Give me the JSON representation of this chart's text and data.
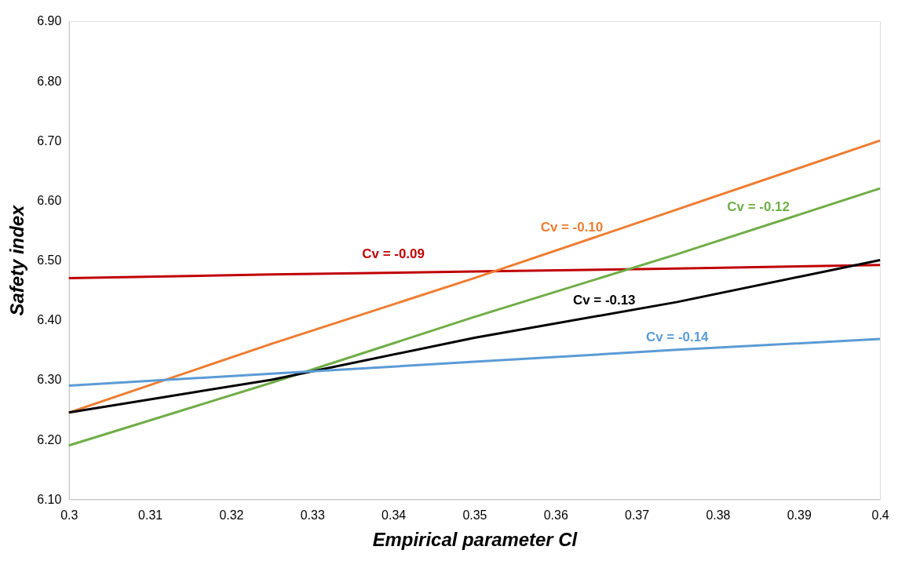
{
  "chart_data": {
    "type": "line",
    "xlabel": "Empirical parameter Cl",
    "ylabel": "Safety index",
    "x": [
      0.3,
      0.325,
      0.35,
      0.375,
      0.4
    ],
    "series": [
      {
        "color": "#c00000",
        "values": [
          6.47,
          6.476,
          6.481,
          6.486,
          6.492
        ]
      },
      {
        "color": "#ed7d31",
        "values": [
          6.245,
          6.36,
          6.47,
          6.585,
          6.7
        ]
      },
      {
        "color": "#70ad47",
        "values": [
          6.19,
          6.295,
          6.405,
          6.51,
          6.62
        ]
      },
      {
        "color": "#000000",
        "values": [
          6.245,
          6.3,
          6.37,
          6.43,
          6.5
        ]
      },
      {
        "color": "#5b9bd5",
        "values": [
          6.29,
          6.31,
          6.33,
          6.35,
          6.368
        ]
      }
    ],
    "annotations": [
      "Cv = -0.09",
      "Cv = -0.10",
      "Cv = -0.12",
      "Cv = -0.13",
      "Cv = -0.14"
    ],
    "xlim": [
      0.3,
      0.4
    ],
    "xticks": [
      0.3,
      0.31,
      0.32,
      0.33,
      0.34,
      0.35,
      0.36,
      0.37,
      0.38,
      0.39,
      0.4
    ],
    "ylim": [
      6.1,
      6.9
    ],
    "yticks": [
      {
        "value": 6.1,
        "label": "6.10"
      },
      {
        "value": 6.2,
        "label": "6.20"
      },
      {
        "value": 6.3,
        "label": "6.30"
      },
      {
        "value": 6.4,
        "label": "6.40"
      },
      {
        "value": 6.5,
        "label": "6.50"
      },
      {
        "value": 6.6,
        "label": "6.60"
      },
      {
        "value": 6.7,
        "label": "6.70"
      },
      {
        "value": 6.8,
        "label": "6.80"
      },
      {
        "value": 6.9,
        "label": "6.90"
      }
    ],
    "grid": false,
    "legend": false,
    "marker": "none",
    "line_style": "solid"
  }
}
